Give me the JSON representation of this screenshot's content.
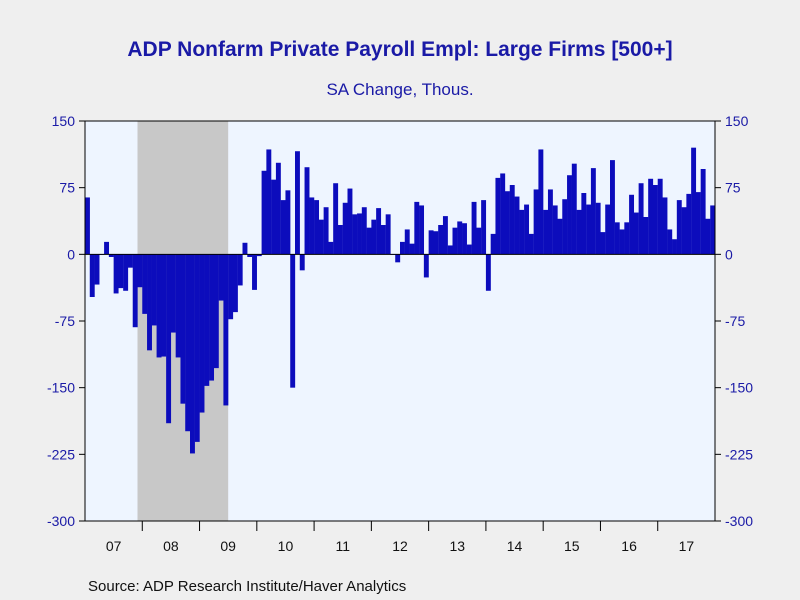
{
  "chart_data": {
    "type": "bar",
    "title": "ADP Nonfarm Private Payroll Empl: Large Firms [500+]",
    "subtitle": "SA Change, Thous.",
    "source": "Source:  ADP Research Institute/Haver Analytics",
    "ylim": [
      -300,
      150
    ],
    "yticks": [
      "150",
      "75",
      "0",
      "-75",
      "-150",
      "-225",
      "-300"
    ],
    "x_start": "2007-01",
    "year_labels": [
      "07",
      "08",
      "09",
      "10",
      "11",
      "12",
      "13",
      "14",
      "15",
      "16",
      "17"
    ],
    "recession": {
      "start": "2007-12",
      "end": "2009-06"
    },
    "bar_color": "#0c0cbc",
    "plot_background": "#eef5ff",
    "recession_color": "#c8c8c8",
    "text_color": "#1a1aa6",
    "values": [
      64,
      -48,
      -34,
      0,
      14,
      -3,
      -44,
      -38,
      -41,
      -15,
      -82,
      -37,
      -67,
      -108,
      -80,
      -116,
      -115,
      -190,
      -88,
      -116,
      -168,
      -199,
      -224,
      -211,
      -178,
      -148,
      -142,
      -128,
      -52,
      -170,
      -73,
      -65,
      -35,
      13,
      -3,
      -40,
      -2,
      94,
      118,
      84,
      103,
      61,
      72,
      -150,
      116,
      -18,
      98,
      64,
      61,
      39,
      53,
      14,
      80,
      33,
      58,
      74,
      45,
      46,
      53,
      30,
      39,
      52,
      33,
      45,
      0,
      -9,
      14,
      28,
      12,
      59,
      55,
      -26,
      27,
      26,
      33,
      43,
      10,
      30,
      37,
      35,
      11,
      59,
      30,
      61,
      -41,
      23,
      86,
      91,
      71,
      78,
      65,
      50,
      56,
      23,
      73,
      118,
      50,
      73,
      55,
      40,
      62,
      89,
      102,
      50,
      69,
      56,
      97,
      58,
      25,
      56,
      106,
      36,
      28,
      36,
      67,
      47,
      80,
      42,
      85,
      78,
      85,
      64,
      28,
      17,
      61,
      53,
      68,
      120,
      70,
      96,
      40,
      55
    ]
  }
}
